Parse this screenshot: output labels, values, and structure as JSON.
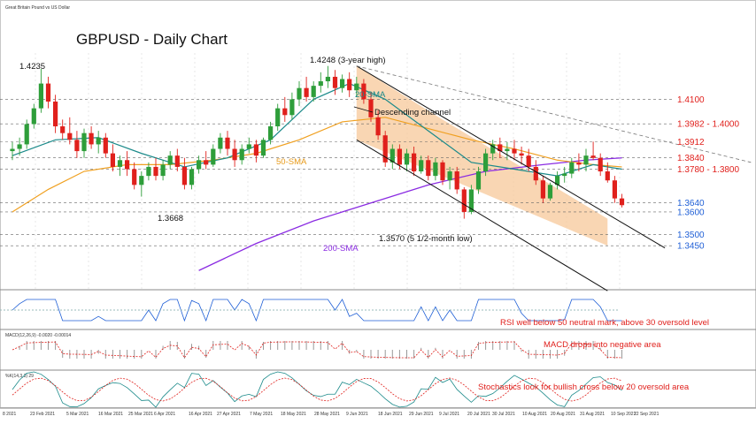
{
  "chart_data": {
    "type": "candlestick",
    "title": "GBPUSD - Daily Chart",
    "source_label": "Great Britain Pound vs US Dollar",
    "x_labels": [
      "8 2021",
      "23 Feb 2021",
      "5 Mar 2021",
      "16 Mar 2021",
      "25 Mar 2021",
      "6 Apr 2021",
      "16 Apr 2021",
      "27 Apr 2021",
      "7 May 2021",
      "18 May 2021",
      "28 May 2021",
      "9 Jun 2021",
      "18 Jun 2021",
      "29 Jun 2021",
      "9 Jul 2021",
      "20 Jul 2021",
      "30 Jul 2021",
      "10 Aug 2021",
      "20 Aug 2021",
      "31 Aug 2021",
      "10 Sep 2021",
      "22 Sep 2021"
    ],
    "ohlc": [
      [
        1.387,
        1.391,
        1.383,
        1.388
      ],
      [
        1.388,
        1.393,
        1.385,
        1.39
      ],
      [
        1.39,
        1.401,
        1.388,
        1.399
      ],
      [
        1.399,
        1.408,
        1.397,
        1.406
      ],
      [
        1.406,
        1.4235,
        1.404,
        1.417
      ],
      [
        1.417,
        1.42,
        1.406,
        1.409
      ],
      [
        1.409,
        1.412,
        1.395,
        1.398
      ],
      [
        1.398,
        1.401,
        1.392,
        1.395
      ],
      [
        1.395,
        1.402,
        1.39,
        1.392
      ],
      [
        1.392,
        1.396,
        1.384,
        1.387
      ],
      [
        1.387,
        1.397,
        1.384,
        1.395
      ],
      [
        1.395,
        1.398,
        1.388,
        1.39
      ],
      [
        1.39,
        1.396,
        1.386,
        1.393
      ],
      [
        1.393,
        1.395,
        1.384,
        1.386
      ],
      [
        1.386,
        1.39,
        1.378,
        1.38
      ],
      [
        1.38,
        1.385,
        1.376,
        1.383
      ],
      [
        1.383,
        1.387,
        1.376,
        1.379
      ],
      [
        1.379,
        1.382,
        1.37,
        1.372
      ],
      [
        1.372,
        1.378,
        1.3668,
        1.376
      ],
      [
        1.376,
        1.382,
        1.374,
        1.38
      ],
      [
        1.38,
        1.384,
        1.374,
        1.376
      ],
      [
        1.376,
        1.383,
        1.374,
        1.381
      ],
      [
        1.381,
        1.387,
        1.379,
        1.385
      ],
      [
        1.385,
        1.388,
        1.378,
        1.38
      ],
      [
        1.38,
        1.384,
        1.37,
        1.372
      ],
      [
        1.372,
        1.38,
        1.37,
        1.379
      ],
      [
        1.379,
        1.385,
        1.377,
        1.383
      ],
      [
        1.383,
        1.387,
        1.379,
        1.381
      ],
      [
        1.381,
        1.39,
        1.38,
        1.388
      ],
      [
        1.388,
        1.395,
        1.386,
        1.393
      ],
      [
        1.393,
        1.396,
        1.385,
        1.388
      ],
      [
        1.388,
        1.392,
        1.38,
        1.383
      ],
      [
        1.383,
        1.39,
        1.381,
        1.388
      ],
      [
        1.388,
        1.393,
        1.386,
        1.39
      ],
      [
        1.39,
        1.392,
        1.382,
        1.385
      ],
      [
        1.385,
        1.393,
        1.384,
        1.392
      ],
      [
        1.392,
        1.4,
        1.39,
        1.398
      ],
      [
        1.398,
        1.408,
        1.396,
        1.406
      ],
      [
        1.406,
        1.411,
        1.4,
        1.403
      ],
      [
        1.403,
        1.413,
        1.401,
        1.41
      ],
      [
        1.41,
        1.418,
        1.407,
        1.415
      ],
      [
        1.415,
        1.42,
        1.409,
        1.411
      ],
      [
        1.411,
        1.418,
        1.409,
        1.416
      ],
      [
        1.416,
        1.422,
        1.413,
        1.418
      ],
      [
        1.418,
        1.4248,
        1.415,
        1.42
      ],
      [
        1.42,
        1.423,
        1.412,
        1.415
      ],
      [
        1.415,
        1.421,
        1.413,
        1.419
      ],
      [
        1.419,
        1.422,
        1.411,
        1.414
      ],
      [
        1.414,
        1.42,
        1.411,
        1.417
      ],
      [
        1.417,
        1.419,
        1.408,
        1.41
      ],
      [
        1.41,
        1.413,
        1.4,
        1.402
      ],
      [
        1.402,
        1.405,
        1.392,
        1.394
      ],
      [
        1.394,
        1.396,
        1.38,
        1.382
      ],
      [
        1.382,
        1.39,
        1.379,
        1.388
      ],
      [
        1.388,
        1.39,
        1.379,
        1.381
      ],
      [
        1.381,
        1.388,
        1.378,
        1.386
      ],
      [
        1.386,
        1.389,
        1.376,
        1.378
      ],
      [
        1.378,
        1.385,
        1.377,
        1.383
      ],
      [
        1.383,
        1.385,
        1.374,
        1.376
      ],
      [
        1.376,
        1.384,
        1.374,
        1.382
      ],
      [
        1.382,
        1.383,
        1.372,
        1.374
      ],
      [
        1.374,
        1.38,
        1.37,
        1.378
      ],
      [
        1.378,
        1.38,
        1.368,
        1.37
      ],
      [
        1.37,
        1.371,
        1.357,
        1.36
      ],
      [
        1.36,
        1.372,
        1.359,
        1.37
      ],
      [
        1.37,
        1.38,
        1.368,
        1.378
      ],
      [
        1.378,
        1.388,
        1.376,
        1.386
      ],
      [
        1.386,
        1.392,
        1.383,
        1.39
      ],
      [
        1.39,
        1.393,
        1.384,
        1.387
      ],
      [
        1.387,
        1.391,
        1.383,
        1.388
      ],
      [
        1.388,
        1.392,
        1.383,
        1.386
      ],
      [
        1.386,
        1.389,
        1.381,
        1.385
      ],
      [
        1.385,
        1.388,
        1.378,
        1.38
      ],
      [
        1.38,
        1.383,
        1.372,
        1.374
      ],
      [
        1.374,
        1.376,
        1.364,
        1.366
      ],
      [
        1.366,
        1.373,
        1.365,
        1.372
      ],
      [
        1.372,
        1.378,
        1.37,
        1.376
      ],
      [
        1.376,
        1.38,
        1.373,
        1.377
      ],
      [
        1.377,
        1.384,
        1.375,
        1.382
      ],
      [
        1.382,
        1.386,
        1.378,
        1.381
      ],
      [
        1.381,
        1.388,
        1.378,
        1.385
      ],
      [
        1.385,
        1.3912,
        1.383,
        1.384
      ],
      [
        1.384,
        1.386,
        1.376,
        1.378
      ],
      [
        1.378,
        1.382,
        1.373,
        1.374
      ],
      [
        1.374,
        1.376,
        1.364,
        1.366
      ],
      [
        1.366,
        1.368,
        1.362,
        1.363
      ]
    ],
    "sma20": [
      [
        0,
        1.385
      ],
      [
        6,
        1.392
      ],
      [
        12,
        1.393
      ],
      [
        18,
        1.386
      ],
      [
        24,
        1.38
      ],
      [
        30,
        1.384
      ],
      [
        36,
        1.392
      ],
      [
        42,
        1.41
      ],
      [
        47,
        1.417
      ],
      [
        52,
        1.41
      ],
      [
        58,
        1.396
      ],
      [
        64,
        1.382
      ],
      [
        70,
        1.379
      ],
      [
        76,
        1.376
      ],
      [
        81,
        1.381
      ],
      [
        85,
        1.379
      ]
    ],
    "sma50": [
      [
        0,
        1.36
      ],
      [
        5,
        1.37
      ],
      [
        10,
        1.378
      ],
      [
        16,
        1.381
      ],
      [
        22,
        1.381
      ],
      [
        28,
        1.383
      ],
      [
        34,
        1.386
      ],
      [
        40,
        1.392
      ],
      [
        46,
        1.4
      ],
      [
        52,
        1.402
      ],
      [
        58,
        1.397
      ],
      [
        64,
        1.392
      ],
      [
        70,
        1.388
      ],
      [
        76,
        1.383
      ],
      [
        81,
        1.381
      ],
      [
        85,
        1.38
      ]
    ],
    "sma200": [
      [
        26,
        1.334
      ],
      [
        34,
        1.346
      ],
      [
        42,
        1.356
      ],
      [
        50,
        1.364
      ],
      [
        58,
        1.372
      ],
      [
        66,
        1.378
      ],
      [
        74,
        1.381
      ],
      [
        80,
        1.383
      ],
      [
        85,
        1.384
      ]
    ],
    "channel_upper": [
      [
        48,
        1.4248
      ],
      [
        91,
        1.344
      ]
    ],
    "channel_lower": [
      [
        48,
        1.392
      ],
      [
        83,
        1.325
      ]
    ],
    "trendline": [
      [
        48,
        1.4248
      ],
      [
        103,
        1.382
      ]
    ],
    "shade": [
      [
        48,
        1.4248
      ],
      [
        60,
        1.401
      ],
      [
        83,
        1.357
      ],
      [
        83,
        1.345
      ],
      [
        48,
        1.392
      ]
    ],
    "levels": [
      {
        "label": "1.4100",
        "value": 1.41,
        "color": "#e0201c"
      },
      {
        "label": "1.3982 - 1.4000",
        "value": 1.3991,
        "color": "#e0201c"
      },
      {
        "label": "1.3912",
        "value": 1.3912,
        "color": "#e0201c"
      },
      {
        "label": "1.3840",
        "value": 1.384,
        "color": "#e0201c"
      },
      {
        "label": "1.3780 - 1.3800",
        "value": 1.379,
        "color": "#e0201c"
      },
      {
        "label": "1.3640",
        "value": 1.364,
        "color": "#1f5fd6"
      },
      {
        "label": "1.3600",
        "value": 1.36,
        "color": "#1f5fd6"
      },
      {
        "label": "1.3500",
        "value": 1.35,
        "color": "#1f5fd6"
      },
      {
        "label": "1.3450",
        "value": 1.345,
        "color": "#1f5fd6"
      }
    ],
    "annotations": {
      "high_2021": "1.4235",
      "three_year_high": "1.4248 (3-year high)",
      "low_march": "1.3668",
      "low_july": "1.3570 (5 1/2-month low)",
      "sma20_label": "20-SMA",
      "sma50_label": "50-SMA",
      "sma200_label": "200-SMA",
      "channel_label": "Descending channel"
    },
    "indicators": {
      "rsi_note": "RSI well below 50 neutral mark, above 30 oversold level",
      "macd_header": "MACD(12,26,9) -0.0020 -0.00014",
      "macd_note": "MACD drops into negative area",
      "stoch_header": "%K(14,3,3) 29",
      "stoch_note": "Stochastics look for bullish cross below 20 oversold area"
    },
    "colors": {
      "bull": "#2e9e3a",
      "bear": "#e0201c",
      "sma20": "#1b8a8a",
      "sma50": "#f0a020",
      "sma200": "#8a2be2",
      "shade": "#f7c89a"
    }
  }
}
